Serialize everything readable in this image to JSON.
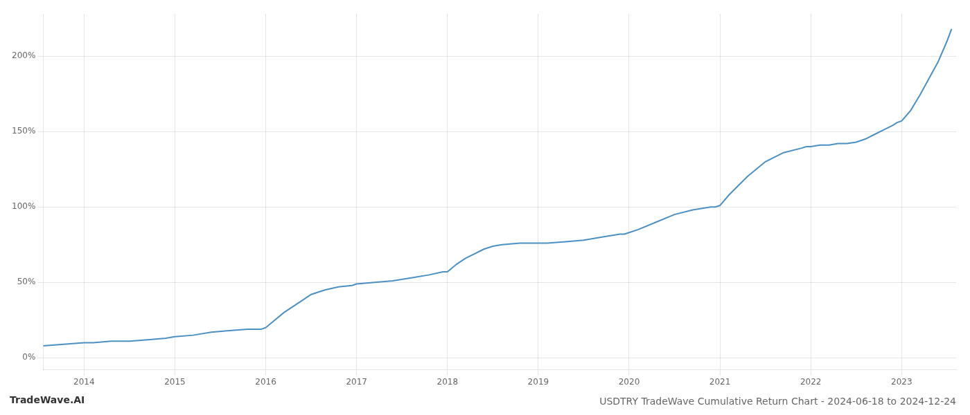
{
  "chart_data": {
    "type": "line",
    "title": "USDTRY TradeWave Cumulative Return Chart - 2024-06-18 to 2024-12-24",
    "annotations": [
      "TradeWave.AI"
    ],
    "color": "#4a90c4",
    "grid": true,
    "xlim": [
      2013.55,
      2023.6
    ],
    "xticks": [
      2014,
      2015,
      2016,
      2017,
      2018,
      2019,
      2020,
      2021,
      2022,
      2023
    ],
    "ylim": [
      -8,
      228
    ],
    "yticks": [
      {
        "value": 0,
        "label": "0%"
      },
      {
        "value": 50,
        "label": "50%"
      },
      {
        "value": 100,
        "label": "100%"
      },
      {
        "value": 150,
        "label": "150%"
      },
      {
        "value": 200,
        "label": "200%"
      }
    ],
    "x": [
      2013.55,
      2014.0,
      2014.1,
      2014.3,
      2014.5,
      2014.7,
      2014.9,
      2015.0,
      2015.2,
      2015.4,
      2015.6,
      2015.8,
      2015.95,
      2016.0,
      2016.2,
      2016.35,
      2016.5,
      2016.65,
      2016.8,
      2016.95,
      2017.0,
      2017.2,
      2017.4,
      2017.6,
      2017.8,
      2017.95,
      2018.0,
      2018.1,
      2018.2,
      2018.3,
      2018.4,
      2018.5,
      2018.6,
      2018.8,
      2018.95,
      2019.0,
      2019.1,
      2019.3,
      2019.5,
      2019.7,
      2019.9,
      2019.95,
      2020.0,
      2020.1,
      2020.3,
      2020.5,
      2020.7,
      2020.9,
      2020.95,
      2021.0,
      2021.1,
      2021.3,
      2021.5,
      2021.7,
      2021.9,
      2021.95,
      2022.0,
      2022.1,
      2022.2,
      2022.3,
      2022.4,
      2022.5,
      2022.6,
      2022.7,
      2022.8,
      2022.9,
      2022.95,
      2023.0,
      2023.1,
      2023.2,
      2023.3,
      2023.4,
      2023.5,
      2023.55
    ],
    "values": [
      8,
      10,
      10,
      11,
      11,
      12,
      13,
      14,
      15,
      17,
      18,
      19,
      19,
      20,
      30,
      36,
      42,
      45,
      47,
      48,
      49,
      50,
      51,
      53,
      55,
      57,
      57,
      62,
      66,
      69,
      72,
      74,
      75,
      76,
      76,
      76,
      76,
      77,
      78,
      80,
      82,
      82,
      83,
      85,
      90,
      95,
      98,
      100,
      100,
      101,
      108,
      120,
      130,
      136,
      139,
      140,
      140,
      141,
      141,
      142,
      142,
      143,
      145,
      148,
      151,
      154,
      156,
      157,
      164,
      174,
      185,
      196,
      210,
      218
    ]
  }
}
